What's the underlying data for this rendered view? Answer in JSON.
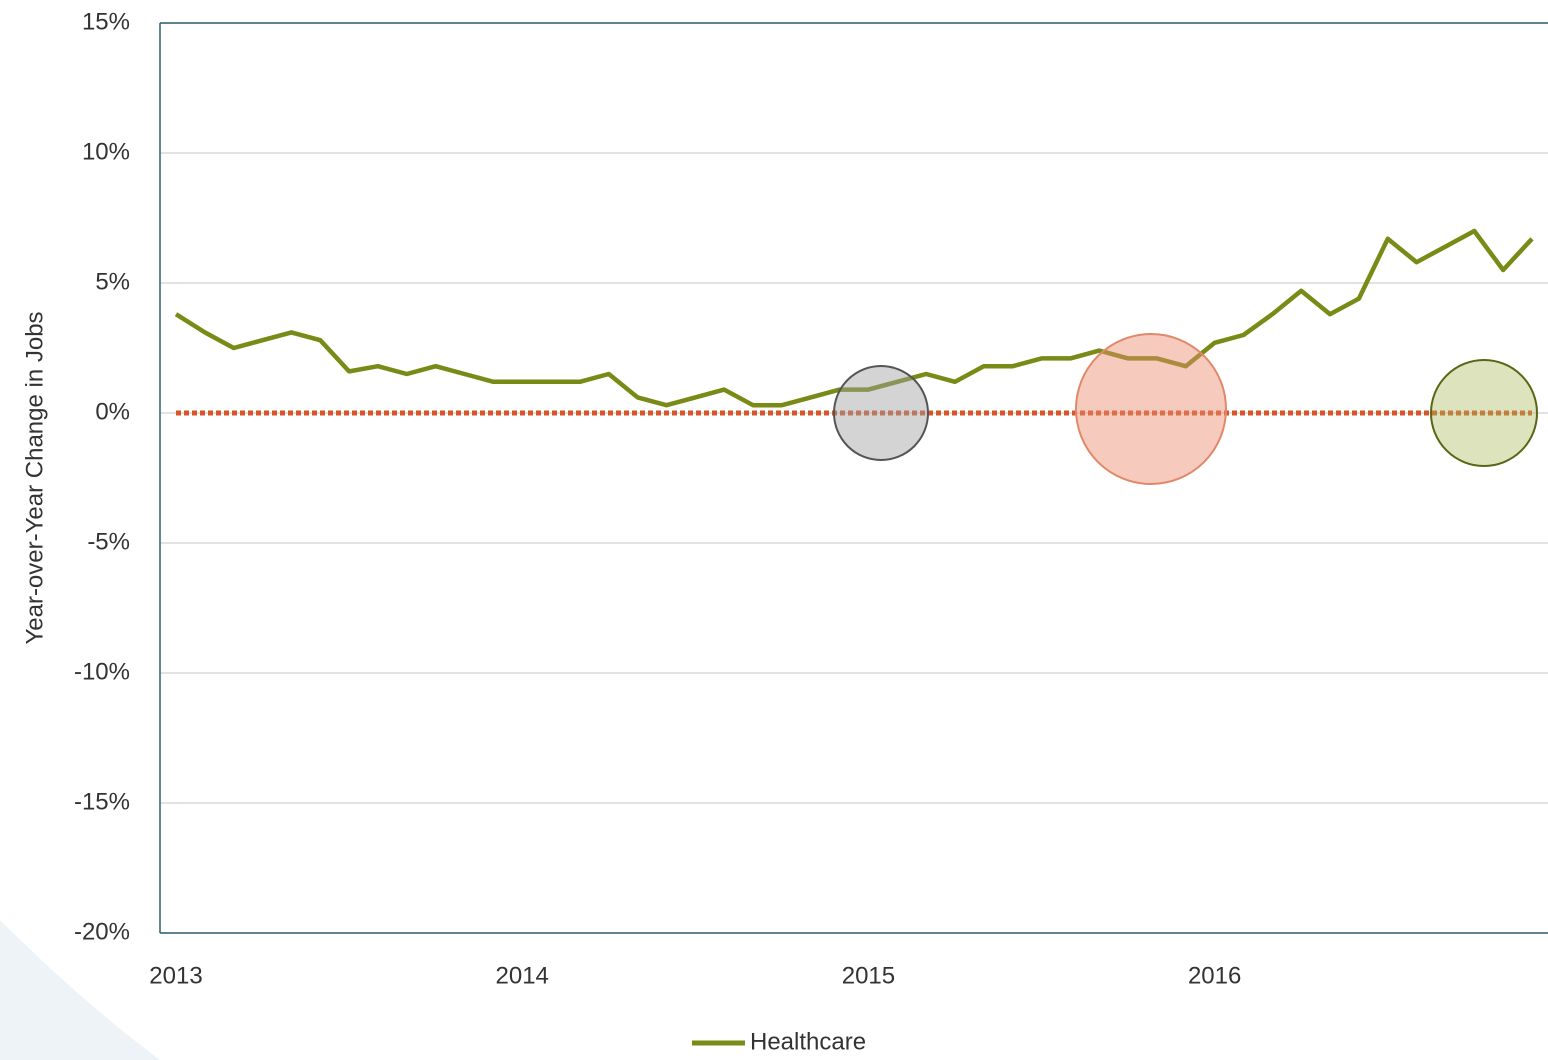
{
  "chart_data": {
    "type": "line",
    "y_label": "Year-over-Year Change in Jobs",
    "categories": [
      "2013",
      null,
      null,
      null,
      null,
      null,
      null,
      null,
      null,
      null,
      null,
      null,
      "2014",
      null,
      null,
      null,
      null,
      null,
      null,
      null,
      null,
      null,
      null,
      null,
      "2015",
      null,
      null,
      null,
      null,
      null,
      null,
      null,
      null,
      null,
      null,
      null,
      "2016",
      null,
      null,
      null,
      null,
      null,
      null,
      null,
      null,
      null,
      null,
      null
    ],
    "series": [
      {
        "name": "Healthcare",
        "color": "#7a8a16",
        "values": [
          3.8,
          3.1,
          2.5,
          2.8,
          3.1,
          2.8,
          1.6,
          1.8,
          1.5,
          1.8,
          1.5,
          1.2,
          1.2,
          1.2,
          1.2,
          1.5,
          0.6,
          0.3,
          0.6,
          0.9,
          0.3,
          0.3,
          0.6,
          0.9,
          0.9,
          1.2,
          1.5,
          1.2,
          1.8,
          1.8,
          2.1,
          2.1,
          2.4,
          2.1,
          2.1,
          1.8,
          2.7,
          3.0,
          3.8,
          4.7,
          3.8,
          4.4,
          6.7,
          5.8,
          6.4,
          7.0,
          5.5,
          6.7
        ]
      }
    ],
    "reference_line": {
      "value": 0,
      "color": "#d4572a",
      "dotted": true
    },
    "ylim": [
      -20,
      15
    ],
    "yticks": [
      {
        "value": -20,
        "label": "-20%"
      },
      {
        "value": -15,
        "label": "-15%"
      },
      {
        "value": -10,
        "label": "-10%"
      },
      {
        "value": -5,
        "label": "-5%"
      },
      {
        "value": 0,
        "label": "0%"
      },
      {
        "value": 5,
        "label": "5%"
      },
      {
        "value": 10,
        "label": "10%"
      },
      {
        "value": 15,
        "label": "15%"
      }
    ],
    "grid": true,
    "legend": "bottom"
  }
}
